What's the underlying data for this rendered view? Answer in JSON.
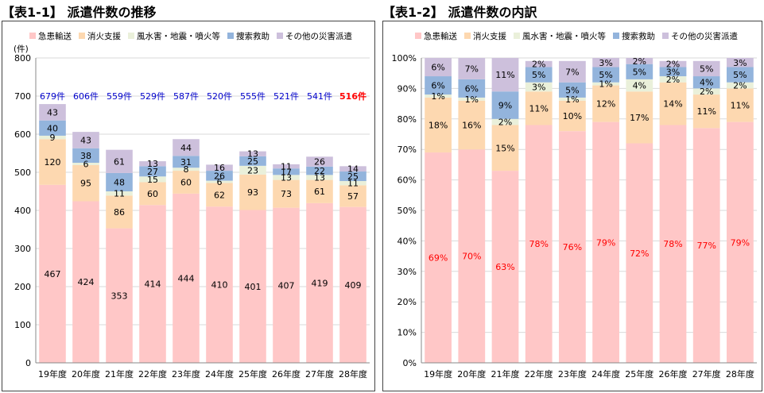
{
  "charts": [
    {
      "title": "【表1-1】 派遣件数の推移"
    },
    {
      "title": "【表1-2】 派遣件数の内訳"
    }
  ],
  "chart_data": [
    {
      "type": "bar",
      "stacked": true,
      "title": "【表1-1】 派遣件数の推移",
      "ylabel": "(件)",
      "ylim": [
        0,
        800
      ],
      "yticks": [
        0,
        100,
        200,
        300,
        400,
        500,
        600,
        700,
        800
      ],
      "grid": true,
      "legend_position": "top",
      "categories": [
        "19年度",
        "20年度",
        "21年度",
        "22年度",
        "23年度",
        "24年度",
        "25年度",
        "26年度",
        "27年度",
        "28年度"
      ],
      "series": [
        {
          "name": "急患輸送",
          "color": "#ffc7c7",
          "values": [
            467,
            424,
            353,
            414,
            444,
            410,
            401,
            407,
            419,
            409
          ]
        },
        {
          "name": "消火支援",
          "color": "#fdd8b0",
          "values": [
            120,
            95,
            86,
            60,
            60,
            62,
            93,
            73,
            61,
            57
          ]
        },
        {
          "name": "風水害・地震・噴火等",
          "color": "#eaf0da",
          "values": [
            9,
            6,
            11,
            15,
            8,
            6,
            23,
            13,
            13,
            11
          ]
        },
        {
          "name": "捜索救助",
          "color": "#93b4dc",
          "values": [
            40,
            38,
            48,
            27,
            31,
            26,
            25,
            17,
            22,
            25
          ]
        },
        {
          "name": "その他の災害派遣",
          "color": "#cdc0dc",
          "values": [
            43,
            43,
            61,
            13,
            44,
            16,
            13,
            11,
            26,
            14
          ]
        }
      ],
      "totals": [
        "679件",
        "606件",
        "559件",
        "529件",
        "587件",
        "520件",
        "555件",
        "521件",
        "541件",
        "516件"
      ],
      "totals_colors": [
        "#0000cc",
        "#0000cc",
        "#0000cc",
        "#0000cc",
        "#0000cc",
        "#0000cc",
        "#0000cc",
        "#0000cc",
        "#0000cc",
        "#ff0000"
      ]
    },
    {
      "type": "bar",
      "stacked": true,
      "percent": true,
      "title": "【表1-2】 派遣件数の内訳",
      "ylim": [
        0,
        100
      ],
      "yticks": [
        "0%",
        "10%",
        "20%",
        "30%",
        "40%",
        "50%",
        "60%",
        "70%",
        "80%",
        "90%",
        "100%"
      ],
      "grid": true,
      "legend_position": "top",
      "categories": [
        "19年度",
        "20年度",
        "21年度",
        "22年度",
        "23年度",
        "24年度",
        "25年度",
        "26年度",
        "27年度",
        "28年度"
      ],
      "series": [
        {
          "name": "急患輸送",
          "color": "#ffc7c7",
          "label_color": "#ff0000",
          "values": [
            69,
            70,
            63,
            78,
            76,
            79,
            72,
            78,
            77,
            79
          ]
        },
        {
          "name": "消火支援",
          "color": "#fdd8b0",
          "values": [
            18,
            16,
            15,
            11,
            10,
            12,
            17,
            14,
            11,
            11
          ]
        },
        {
          "name": "風水害・地震・噴火等",
          "color": "#eaf0da",
          "values": [
            1,
            1,
            2,
            3,
            1,
            1,
            4,
            2,
            2,
            2
          ]
        },
        {
          "name": "捜索救助",
          "color": "#93b4dc",
          "values": [
            6,
            6,
            9,
            5,
            5,
            5,
            5,
            3,
            4,
            5
          ]
        },
        {
          "name": "その他の災害派遣",
          "color": "#cdc0dc",
          "values": [
            6,
            7,
            11,
            2,
            7,
            3,
            2,
            2,
            5,
            3
          ]
        }
      ]
    }
  ]
}
